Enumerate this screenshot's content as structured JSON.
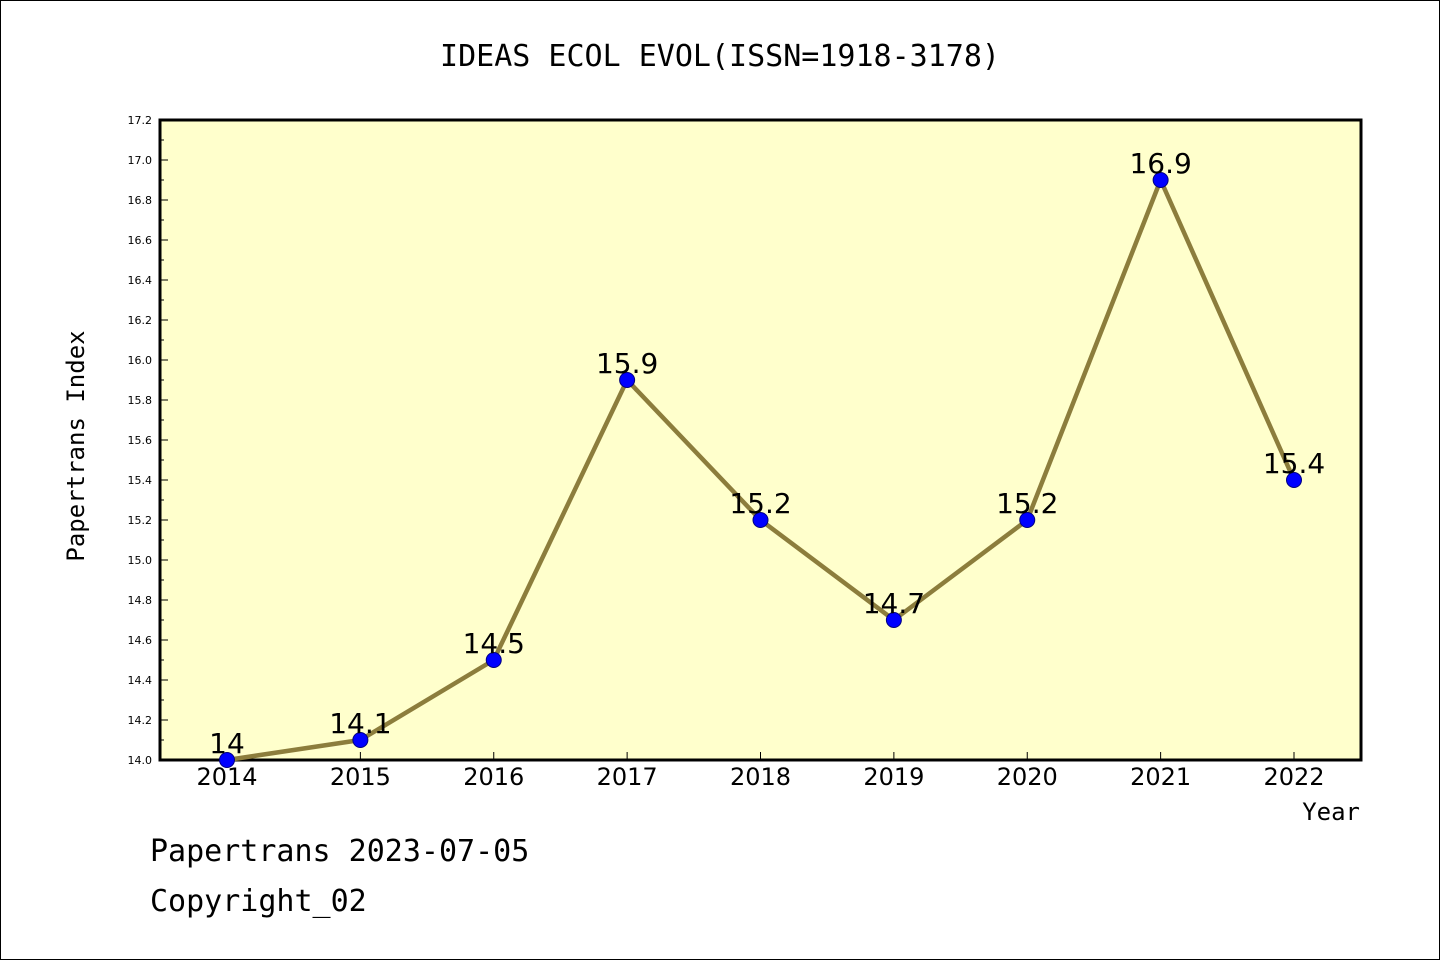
{
  "chart_data": {
    "type": "line",
    "title": "IDEAS ECOL EVOL(ISSN=1918-3178)",
    "xlabel": "Year",
    "ylabel": "Papertrans Index",
    "categories": [
      "2014",
      "2015",
      "2016",
      "2017",
      "2018",
      "2019",
      "2020",
      "2021",
      "2022"
    ],
    "series": [
      {
        "values": [
          14.0,
          14.1,
          14.5,
          15.9,
          15.2,
          14.7,
          15.2,
          16.9,
          15.4
        ],
        "labels": [
          "14",
          "14.1",
          "14.5",
          "15.9",
          "15.2",
          "14.7",
          "15.2",
          "16.9",
          "15.4"
        ]
      }
    ],
    "ylim": [
      14.0,
      17.2
    ],
    "yticks": [
      "14.0",
      "14.2",
      "14.4",
      "14.6",
      "14.8",
      "15.0",
      "15.2",
      "15.4",
      "15.6",
      "15.8",
      "16.0",
      "16.2",
      "16.4",
      "16.6",
      "16.8",
      "17.0",
      "17.2"
    ],
    "grid": false,
    "legend": "none",
    "colors": {
      "plot_background": "#ffffcc",
      "line": "#8c7d3c",
      "marker": "#0000ff",
      "marker_edge": "#000080"
    }
  },
  "footer": {
    "line1": "Papertrans 2023-07-05",
    "line2": "Copyright_02"
  }
}
